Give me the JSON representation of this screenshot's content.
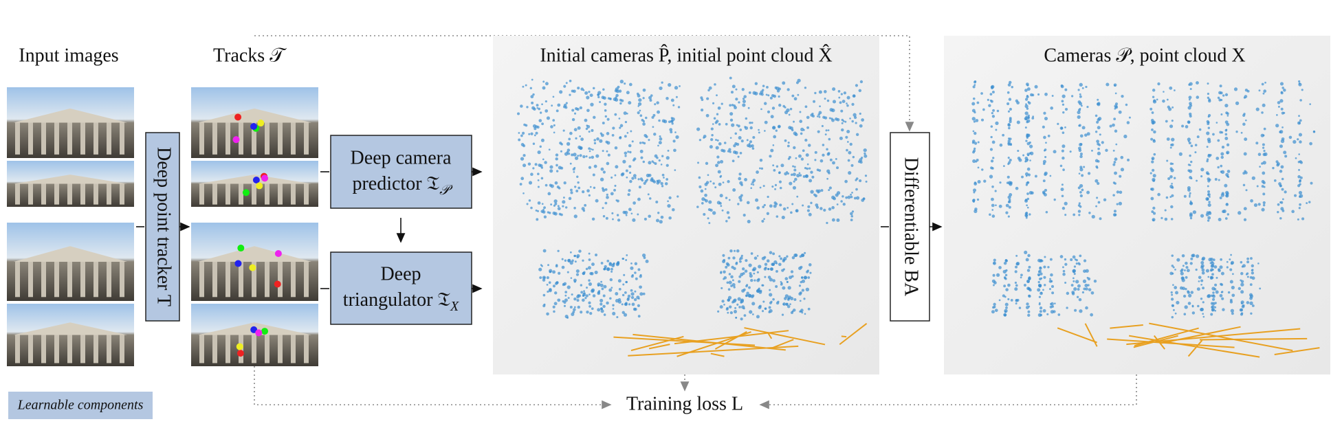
{
  "input_label": "Input images",
  "tracks_label": "Tracks 𝒯",
  "initial_label": "Initial cameras P̂, initial point cloud X̂",
  "final_label": "Cameras 𝒫, point cloud X",
  "tracker_box": "Deep point tracker T",
  "camera_box": {
    "lines": [
      "Deep camera",
      "predictor 𝔗"
    ],
    "subscript": "𝒫"
  },
  "triangulator_box": {
    "lines": [
      "Deep",
      "triangulator 𝔗"
    ],
    "subscript": "X"
  },
  "ba_box": "Differentiable BA",
  "loss": "Training loss L",
  "legend": "Learnable components"
}
